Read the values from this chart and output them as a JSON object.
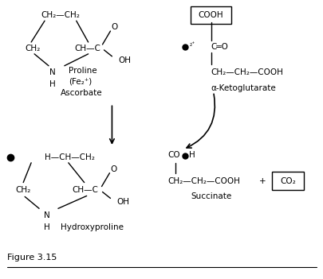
{
  "bg_color": "#ffffff",
  "fig_width": 4.06,
  "fig_height": 3.51,
  "dpi": 100,
  "figure_label": "Figure 3.15",
  "proline": {
    "ch2ch2": "CH₂—CH₂",
    "ch2_left": "CH₂",
    "ch_c": "CH—C",
    "o": "O",
    "oh": "OH",
    "n": "N",
    "h": "H",
    "label1": "Proline",
    "label2": "(Fe₂⁺)",
    "label3": "Ascorbate"
  },
  "ketoglutarate": {
    "cooh": "COOH",
    "c_eq_o": "C═O",
    "ch2ch2cooh": "CH₂—CH₂—COOH",
    "label": "α-Ketoglutarate",
    "o2plus": "₂⁺"
  },
  "hydroxyproline": {
    "h_ch_ch2": "H—CH—CH₂",
    "ch2_left": "CH₂",
    "ch_c": "CH—C",
    "o": "O",
    "oh": "OH",
    "n": "N",
    "h": "H",
    "label": "Hydroxyproline"
  },
  "succinate": {
    "cooh_top": "CO",
    "h_after": "H",
    "ch2ch2cooh": "CH₂—CH₂—COOH",
    "plus": "+",
    "co2": "CO₂",
    "label": "Succinate"
  }
}
